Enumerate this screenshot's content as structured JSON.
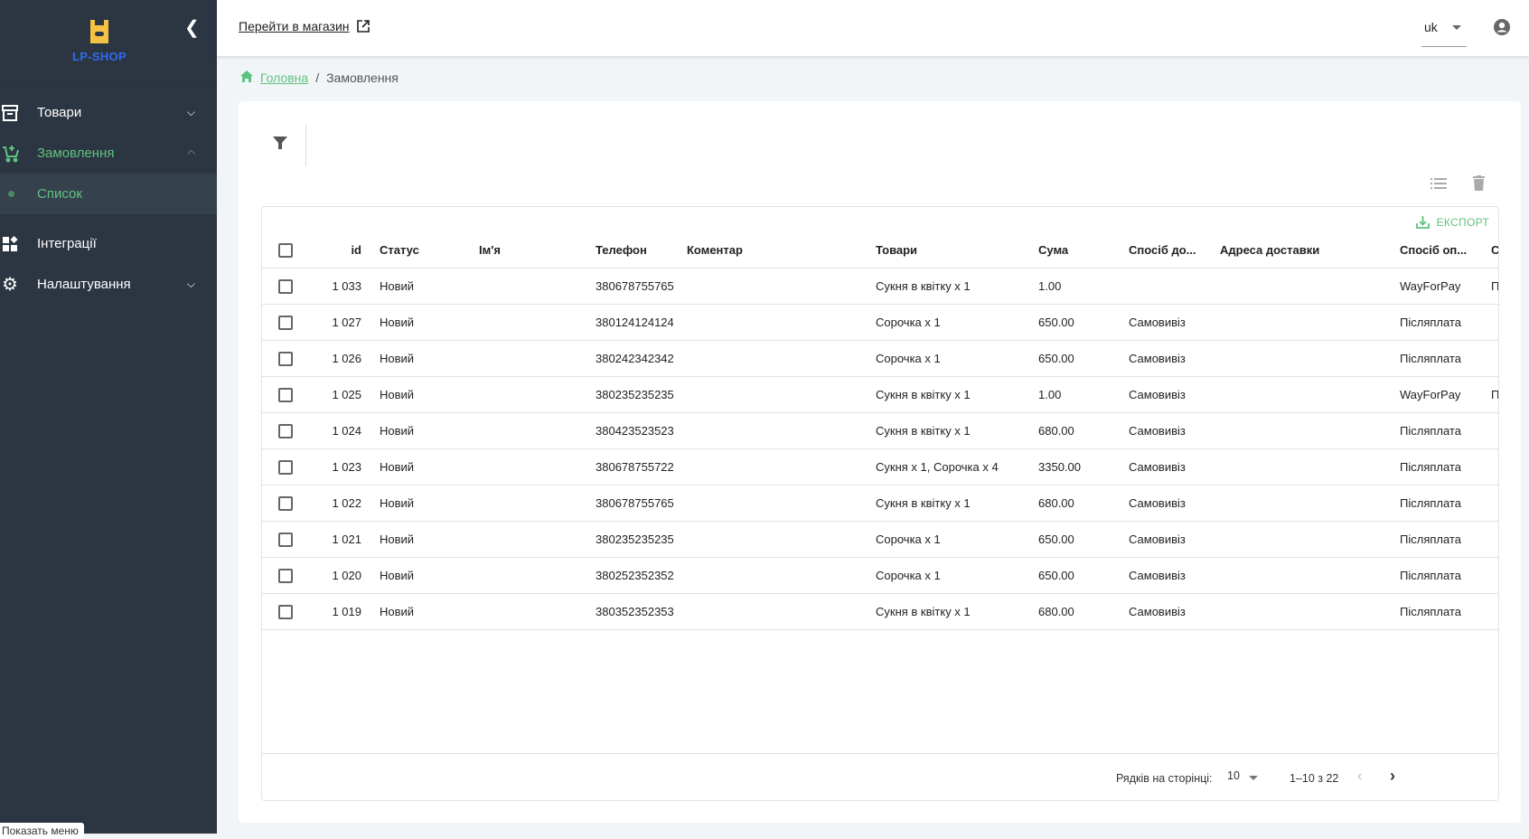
{
  "sidebar": {
    "logo": "LP-SHOP",
    "items": [
      {
        "label": "Товари"
      },
      {
        "label": "Замовлення"
      },
      {
        "label": "Список"
      },
      {
        "label": "Інтеграції"
      },
      {
        "label": "Налаштування"
      }
    ],
    "tooltip": "Показать меню"
  },
  "topbar": {
    "shop_link": "Перейти в магазин",
    "lang": "uk"
  },
  "breadcrumb": {
    "home": "Головна",
    "current": "Замовлення"
  },
  "colors": {
    "accent": "#5fc27e",
    "sidebar": "#2c3643",
    "logo": "#2f6bf0"
  },
  "table": {
    "export": "ЕКСПОРТ",
    "headers": [
      "id",
      "Статус",
      "Ім'я",
      "Телефон",
      "Коментар",
      "Товари",
      "Сума",
      "Спосіб до...",
      "Адреса доставки",
      "Спосіб оп...",
      "С"
    ],
    "rows": [
      [
        "1 033",
        "Новий",
        "",
        "380678755765",
        "",
        "Сукня в квітку x 1",
        "1.00",
        "",
        "",
        "WayForPay",
        "П"
      ],
      [
        "1 027",
        "Новий",
        "",
        "380124124124",
        "",
        "Сорочка x 1",
        "650.00",
        "Самовивіз",
        "",
        "Післяплата",
        ""
      ],
      [
        "1 026",
        "Новий",
        "",
        "380242342342",
        "",
        "Сорочка x 1",
        "650.00",
        "Самовивіз",
        "",
        "Післяплата",
        ""
      ],
      [
        "1 025",
        "Новий",
        "",
        "380235235235",
        "",
        "Сукня в квітку x 1",
        "1.00",
        "Самовивіз",
        "",
        "WayForPay",
        "П"
      ],
      [
        "1 024",
        "Новий",
        "",
        "380423523523",
        "",
        "Сукня в квітку x 1",
        "680.00",
        "Самовивіз",
        "",
        "Післяплата",
        ""
      ],
      [
        "1 023",
        "Новий",
        "",
        "380678755722",
        "",
        "Сукня x 1, Сорочка x 4",
        "3350.00",
        "Самовивіз",
        "",
        "Післяплата",
        ""
      ],
      [
        "1 022",
        "Новий",
        "",
        "380678755765",
        "",
        "Сукня в квітку x 1",
        "680.00",
        "Самовивіз",
        "",
        "Післяплата",
        ""
      ],
      [
        "1 021",
        "Новий",
        "",
        "380235235235",
        "",
        "Сорочка x 1",
        "650.00",
        "Самовивіз",
        "",
        "Післяплата",
        ""
      ],
      [
        "1 020",
        "Новий",
        "",
        "380252352352",
        "",
        "Сорочка x 1",
        "650.00",
        "Самовивіз",
        "",
        "Післяплата",
        ""
      ],
      [
        "1 019",
        "Новий",
        "",
        "380352352353",
        "",
        "Сукня в квітку x 1",
        "680.00",
        "Самовивіз",
        "",
        "Післяплата",
        ""
      ]
    ]
  },
  "pagination": {
    "rows_label": "Рядків на сторінці:",
    "rows_value": "10",
    "range": "1–10 з 22"
  }
}
